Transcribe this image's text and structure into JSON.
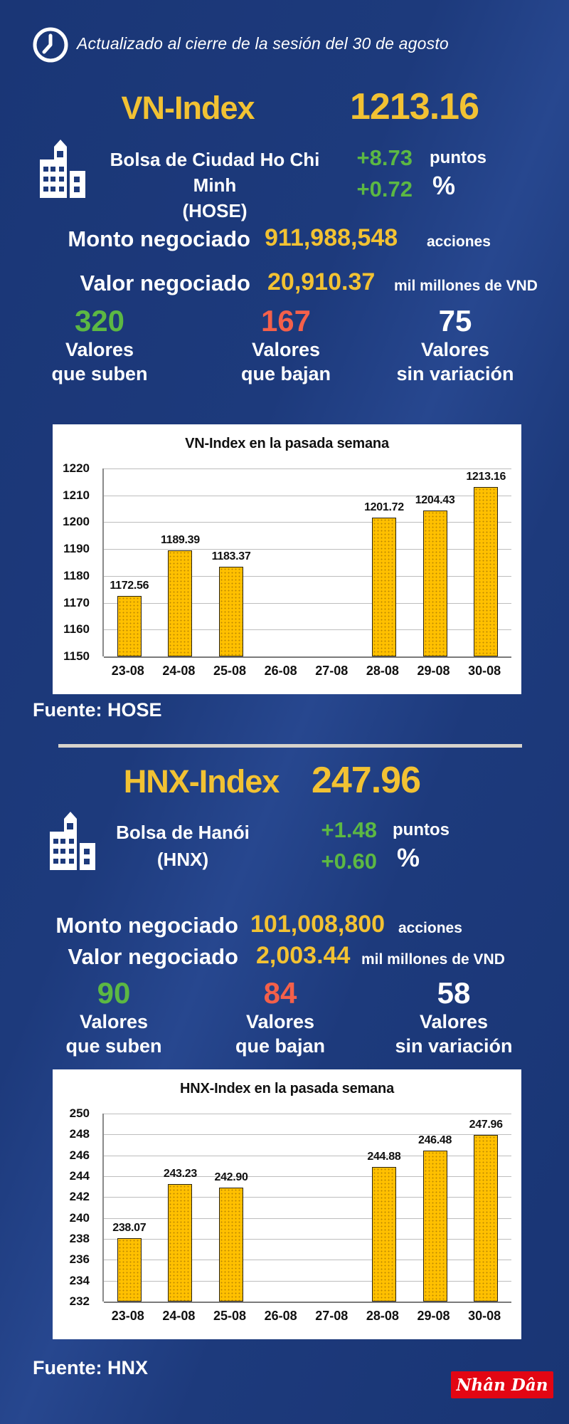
{
  "colors": {
    "background": "#1d3a7b",
    "accent_yellow": "#f2c233",
    "positive_green": "#5cb843",
    "negative_red": "#f4604a",
    "white": "#ffffff",
    "divider": "#d7d3cb",
    "bar_fill": "#ffc000",
    "logo_red": "#e30613"
  },
  "header": {
    "updated_text": "Actualizado al cierre de la sesión del 30 de agosto",
    "clock_icon": "clock-icon"
  },
  "vn": {
    "index_name": "VN-Index",
    "index_value": "1213.16",
    "exchange_line1": "Bolsa de Ciudad Ho Chi Minh",
    "exchange_line2": "(HOSE)",
    "building_icon": "building-icon",
    "change_points": "+8.73",
    "change_points_unit": "puntos",
    "change_percent": "+0.72",
    "change_percent_unit": "%",
    "volume_label": "Monto negociado",
    "volume_value": "911,988,548",
    "volume_unit": "acciones",
    "turnover_label": "Valor negociado",
    "turnover_value": "20,910.37",
    "turnover_unit": "mil millones de VND",
    "stats": [
      {
        "value": "320",
        "color": "#5cb843",
        "line1": "Valores",
        "line2": "que suben"
      },
      {
        "value": "167",
        "color": "#f4604a",
        "line1": "Valores",
        "line2": "que bajan"
      },
      {
        "value": "75",
        "color": "#ffffff",
        "line1": "Valores",
        "line2": "sin variación"
      }
    ],
    "source": "Fuente: HOSE"
  },
  "hnx": {
    "index_name": "HNX-Index",
    "index_value": "247.96",
    "exchange_line1": "Bolsa de Hanói",
    "exchange_line2": "(HNX)",
    "building_icon": "building-icon",
    "change_points": "+1.48",
    "change_points_unit": "puntos",
    "change_percent": "+0.60",
    "change_percent_unit": "%",
    "volume_label": "Monto negociado",
    "volume_value": "101,008,800",
    "volume_unit": "acciones",
    "turnover_label": "Valor negociado",
    "turnover_value": "2,003.44",
    "turnover_unit": "mil millones de VND",
    "stats": [
      {
        "value": "90",
        "color": "#5cb843",
        "line1": "Valores",
        "line2": "que suben"
      },
      {
        "value": "84",
        "color": "#f4604a",
        "line1": "Valores",
        "line2": "que bajan"
      },
      {
        "value": "58",
        "color": "#ffffff",
        "line1": "Valores",
        "line2": "sin variación"
      }
    ],
    "source": "Fuente:  HNX"
  },
  "footer": {
    "logo_text": "Nhân Dân"
  },
  "chart_data": [
    {
      "type": "bar",
      "title": "VN-Index en la pasada semana",
      "categories": [
        "23-08",
        "24-08",
        "25-08",
        "26-08",
        "27-08",
        "28-08",
        "29-08",
        "30-08"
      ],
      "values": [
        1172.56,
        1189.39,
        1183.37,
        null,
        null,
        1201.72,
        1204.43,
        1213.16
      ],
      "xlabel": "",
      "ylabel": "",
      "ylim": [
        1150,
        1220
      ],
      "ytick_step": 10,
      "grid": true,
      "legend": "none",
      "bar_color": "#ffc000"
    },
    {
      "type": "bar",
      "title": "HNX-Index en la pasada semana",
      "categories": [
        "23-08",
        "24-08",
        "25-08",
        "26-08",
        "27-08",
        "28-08",
        "29-08",
        "30-08"
      ],
      "values": [
        238.07,
        243.23,
        242.9,
        null,
        null,
        244.88,
        246.48,
        247.96
      ],
      "xlabel": "",
      "ylabel": "",
      "ylim": [
        232,
        250
      ],
      "ytick_step": 2,
      "grid": true,
      "legend": "none",
      "bar_color": "#ffc000"
    }
  ]
}
